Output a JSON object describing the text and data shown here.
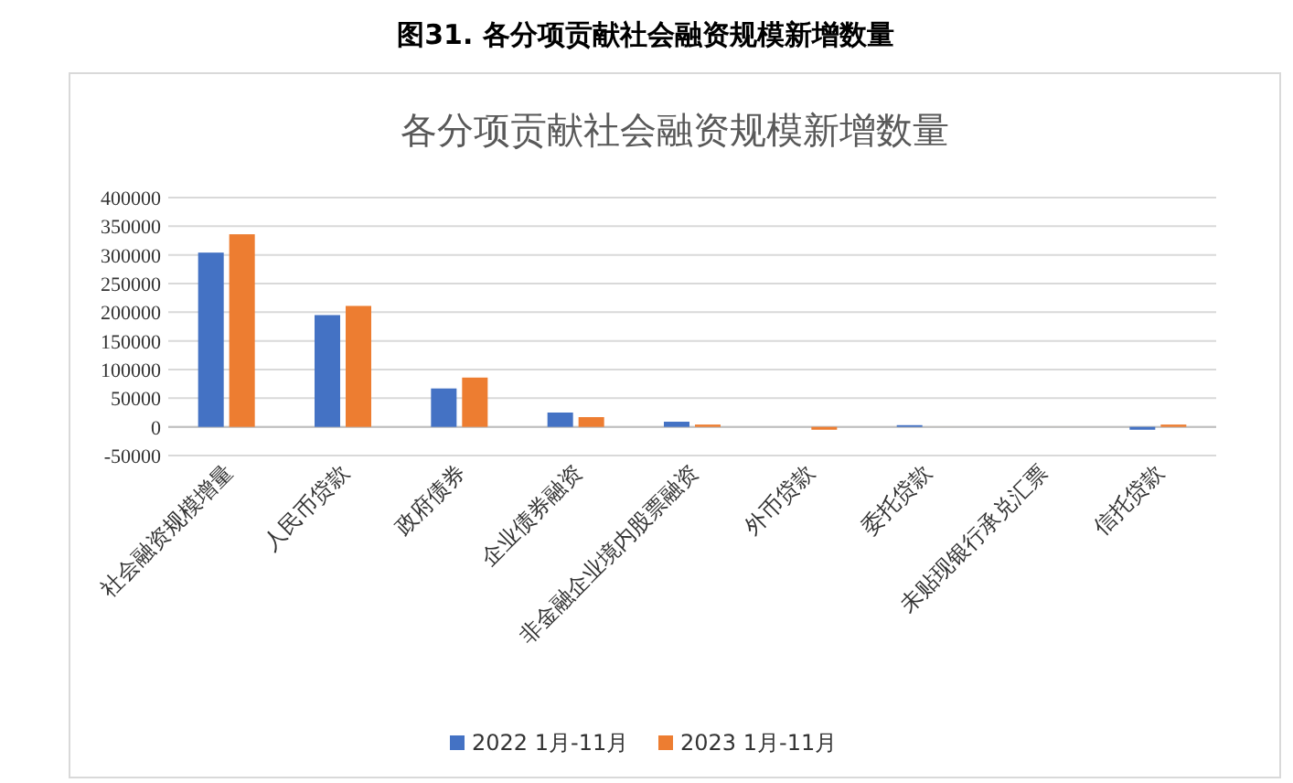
{
  "chart_data": {
    "type": "bar",
    "title": "图31. 各分项贡献社会融资规模新增数量",
    "subtitle": "各分项贡献社会融资规模新增数量",
    "categories": [
      "社会融资规模增量",
      "人民币贷款",
      "政府债券",
      "企业债券融资",
      "非金融企业境内股票融资",
      "外币贷款",
      "委托贷款",
      "未贴现银行承兑汇票",
      "信托贷款"
    ],
    "series": [
      {
        "name": "2022 1月-11月",
        "color": "#4472c4",
        "values": [
          304000,
          195000,
          67000,
          25000,
          9000,
          0,
          3000,
          0,
          -5000
        ]
      },
      {
        "name": "2023 1月-11月",
        "color": "#ed7d31",
        "values": [
          336000,
          211000,
          86000,
          17000,
          4000,
          -5000,
          0,
          0,
          4000
        ]
      }
    ],
    "ylim": [
      -50000,
      400000
    ],
    "yticks": [
      -50000,
      0,
      50000,
      100000,
      150000,
      200000,
      250000,
      300000,
      350000,
      400000
    ],
    "grid": "y",
    "legend": "bottom"
  }
}
